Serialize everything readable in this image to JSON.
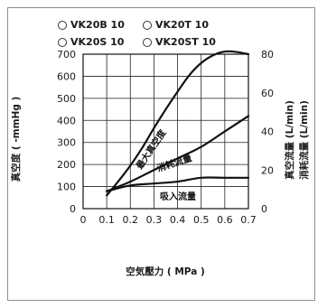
{
  "legend": [
    {
      "marker": "dot-icon",
      "label": "VK20B 10"
    },
    {
      "marker": "dot-icon",
      "label": "VK20T 10"
    },
    {
      "marker": "dot-icon",
      "label": "VK20S 10"
    },
    {
      "marker": "dot-icon",
      "label": "VK20ST 10"
    }
  ],
  "chart_data": {
    "type": "line",
    "xlabel": "空気壓力 ( MPa )",
    "ylabel_left": "真空度 ( -mmHg )",
    "ylabel_right_1": "真空流量 (L/min)",
    "ylabel_right_2": "消耗流量 (L/min)",
    "x_ticks": [
      "0",
      "0.1",
      "0.2",
      "0.3",
      "0.4",
      "0.5",
      "0.6",
      "0.7"
    ],
    "y_left_ticks": [
      "0",
      "100",
      "200",
      "300",
      "400",
      "500",
      "600",
      "700"
    ],
    "y_right_ticks": [
      "0",
      "20",
      "40",
      "60",
      "80"
    ],
    "xlim": [
      0,
      0.7
    ],
    "ylim_left": [
      0,
      700
    ],
    "ylim_right": [
      0,
      80
    ],
    "grid": true,
    "series": [
      {
        "name": "最大真空度",
        "axis": "left",
        "x": [
          0.1,
          0.15,
          0.2,
          0.25,
          0.3,
          0.35,
          0.4,
          0.45,
          0.5,
          0.55,
          0.6,
          0.65,
          0.7
        ],
        "y": [
          60,
          125,
          195,
          275,
          365,
          450,
          530,
          605,
          660,
          695,
          712,
          710,
          700
        ]
      },
      {
        "name": "消耗流量",
        "axis": "right",
        "x": [
          0.1,
          0.2,
          0.3,
          0.4,
          0.5,
          0.6,
          0.7
        ],
        "y": [
          9,
          14,
          20,
          26,
          32,
          40,
          48
        ]
      },
      {
        "name": "吸入流量",
        "axis": "right",
        "x": [
          0.1,
          0.2,
          0.3,
          0.4,
          0.5,
          0.6,
          0.7
        ],
        "y": [
          9,
          12,
          13,
          14,
          16,
          16,
          16
        ]
      }
    ]
  }
}
